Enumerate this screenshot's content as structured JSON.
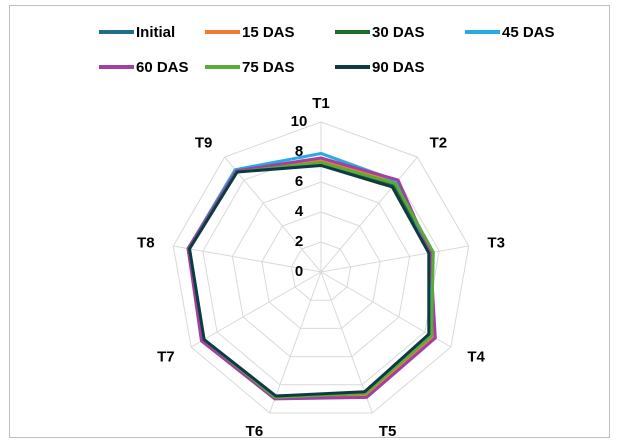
{
  "chart_data": {
    "type": "radar",
    "categories": [
      "T1",
      "T2",
      "T3",
      "T4",
      "T5",
      "T6",
      "T7",
      "T8",
      "T9"
    ],
    "series": [
      {
        "name": "Initial",
        "color": "#1f6e8c",
        "values": [
          7.4,
          7.8,
          7.5,
          8.6,
          8.7,
          8.9,
          9.1,
          9.0,
          8.8
        ]
      },
      {
        "name": "15 DAS",
        "color": "#ed7d31",
        "values": [
          7.5,
          7.8,
          7.5,
          8.6,
          8.7,
          8.9,
          9.1,
          9.0,
          8.8
        ]
      },
      {
        "name": "30 DAS",
        "color": "#1e6b2a",
        "values": [
          7.2,
          7.6,
          7.5,
          8.4,
          8.6,
          8.9,
          9.1,
          9.0,
          8.8
        ]
      },
      {
        "name": "45 DAS",
        "color": "#29abe2",
        "values": [
          7.9,
          7.9,
          7.4,
          8.5,
          8.6,
          8.8,
          9.1,
          9.0,
          8.9
        ]
      },
      {
        "name": "60 DAS",
        "color": "#a040a0",
        "values": [
          7.6,
          8.0,
          7.4,
          8.8,
          8.9,
          9.0,
          9.2,
          9.0,
          8.8
        ]
      },
      {
        "name": "75 DAS",
        "color": "#5aab3c",
        "values": [
          7.3,
          7.7,
          7.6,
          8.5,
          8.6,
          8.9,
          9.0,
          8.9,
          8.7
        ]
      },
      {
        "name": "90 DAS",
        "color": "#0e3b43",
        "values": [
          7.1,
          7.4,
          7.3,
          8.3,
          8.5,
          8.8,
          9.0,
          8.9,
          8.7
        ]
      }
    ],
    "rlim": [
      0,
      10
    ],
    "rticks": [
      0,
      2,
      4,
      6,
      8,
      10
    ],
    "grid": true,
    "legend": "top"
  }
}
